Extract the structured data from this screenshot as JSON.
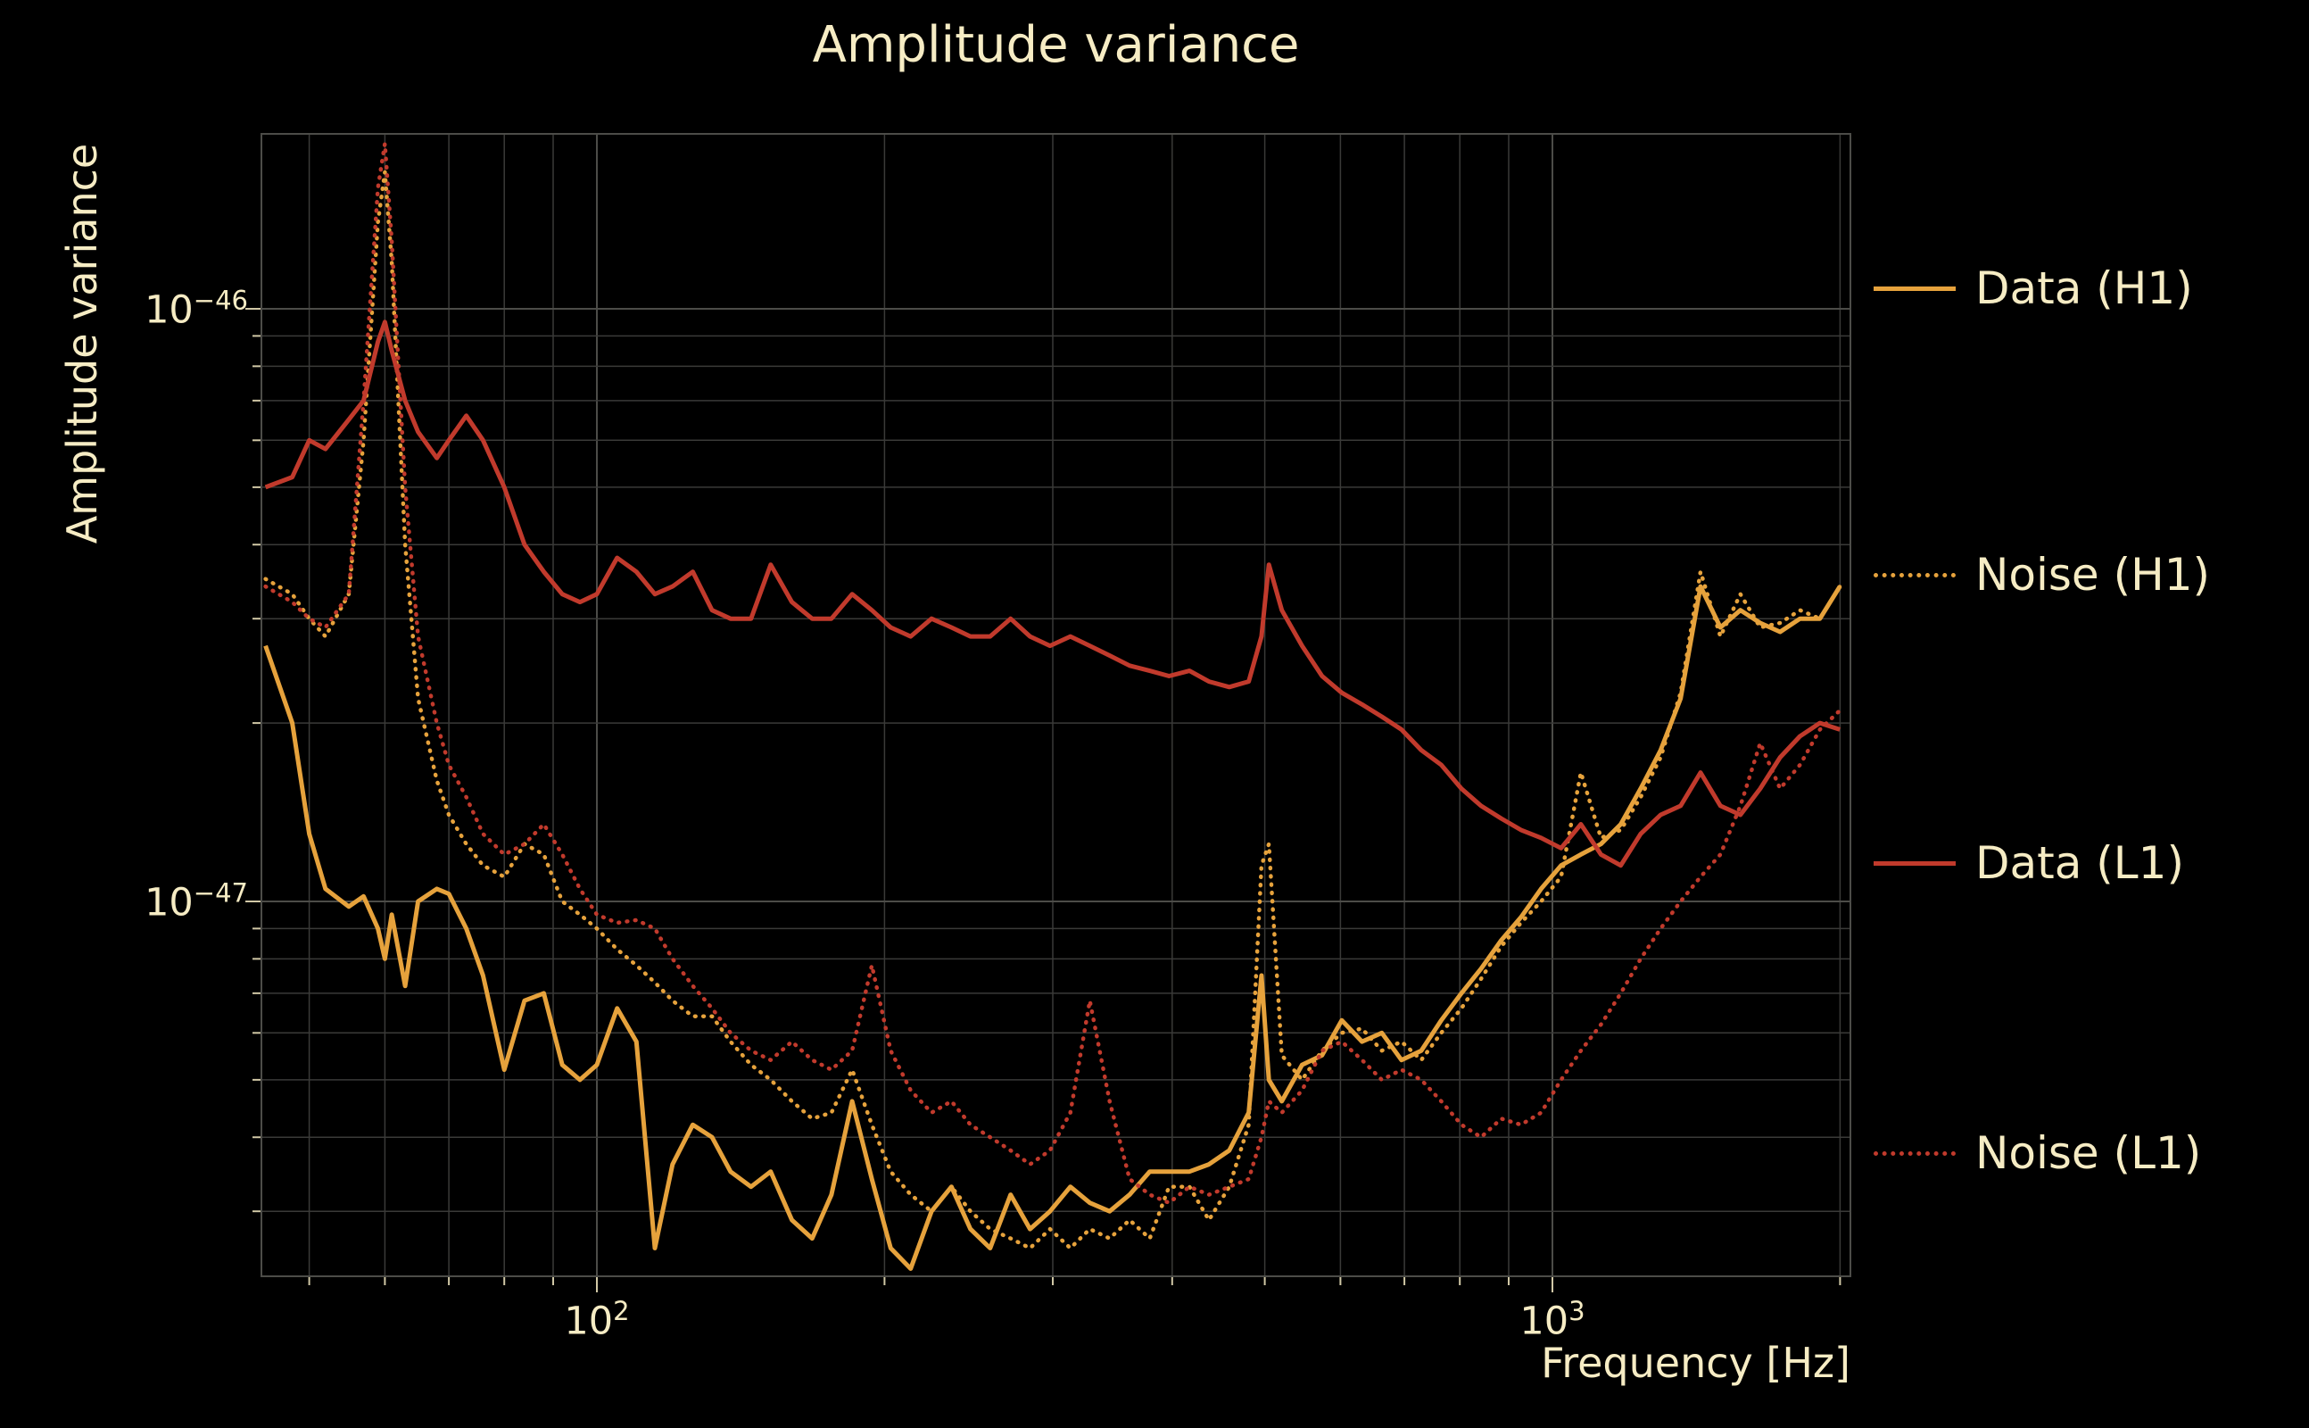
{
  "colors": {
    "background": "#000000",
    "text": "#F6ECC4",
    "grid_minor": "#3a3a38",
    "grid_major": "#4c4c48",
    "frame": "#4c4c48",
    "h1": "#E6A23C",
    "l1": "#C13A2C"
  },
  "chart_data": {
    "type": "line",
    "title": "Amplitude variance",
    "xlabel": "Frequency [Hz]",
    "ylabel": "Amplitude variance",
    "x_scale": "log",
    "y_scale": "log",
    "xlim_hz": [
      45,
      2050
    ],
    "ylim": [
      2.3e-48,
      2.05e-46
    ],
    "grid": true,
    "legend_position": "right-outside",
    "x_ticks": [
      {
        "base": "10",
        "exp": "2"
      },
      {
        "base": "10",
        "exp": "3"
      }
    ],
    "y_ticks": [
      {
        "base": "10",
        "exp": "−46"
      },
      {
        "base": "10",
        "exp": "−47"
      }
    ],
    "values_scale": 1e-48,
    "frequencies_hz": [
      45,
      48,
      50,
      52,
      55,
      57,
      59,
      60,
      61,
      63,
      65,
      68,
      70,
      73,
      76,
      80,
      84,
      88,
      92,
      96,
      100,
      105,
      110,
      115,
      120,
      126,
      132,
      138,
      145,
      152,
      160,
      168,
      176,
      185,
      194,
      203,
      213,
      224,
      235,
      246,
      258,
      271,
      284,
      298,
      313,
      328,
      344,
      361,
      379,
      397,
      417,
      437,
      459,
      481,
      496,
      505,
      521,
      547,
      574,
      602,
      632,
      663,
      695,
      729,
      765,
      803,
      842,
      884,
      927,
      973,
      1021,
      1071,
      1124,
      1179,
      1237,
      1298,
      1362,
      1429,
      1499,
      1573,
      1650,
      1731,
      1816,
      1905,
      1999
    ],
    "series": [
      {
        "name": "Data (H1)",
        "color": "#E6A23C",
        "style": "solid",
        "values": [
          27,
          20,
          13,
          10.5,
          9.8,
          10.2,
          9.0,
          8.0,
          9.5,
          7.2,
          10.0,
          10.5,
          10.3,
          9.0,
          7.5,
          5.2,
          6.8,
          7.0,
          5.3,
          5.0,
          5.3,
          6.6,
          5.8,
          2.6,
          3.6,
          4.2,
          4.0,
          3.5,
          3.3,
          3.5,
          2.9,
          2.7,
          3.2,
          4.6,
          3.4,
          2.6,
          2.4,
          3.0,
          3.3,
          2.8,
          2.6,
          3.2,
          2.8,
          3.0,
          3.3,
          3.1,
          3.0,
          3.2,
          3.5,
          3.5,
          3.5,
          3.6,
          3.8,
          4.4,
          7.5,
          5.0,
          4.6,
          5.3,
          5.5,
          6.3,
          5.8,
          6.0,
          5.4,
          5.6,
          6.3,
          7.0,
          7.7,
          8.6,
          9.4,
          10.5,
          11.5,
          12.0,
          12.5,
          13.5,
          15.5,
          18,
          22,
          34,
          29,
          31,
          29.5,
          28.5,
          30,
          30,
          34
        ]
      },
      {
        "name": "Noise (H1)",
        "color": "#E6A23C",
        "style": "dotted",
        "values": [
          35,
          33,
          30,
          28,
          33,
          60,
          140,
          170,
          120,
          40,
          22,
          16,
          14,
          12.5,
          11.5,
          11,
          12.5,
          12,
          10,
          9.5,
          9.0,
          8.3,
          7.8,
          7.3,
          6.8,
          6.4,
          6.4,
          5.8,
          5.3,
          5.0,
          4.6,
          4.3,
          4.4,
          5.2,
          4.2,
          3.5,
          3.2,
          3.0,
          3.3,
          3.0,
          2.8,
          2.7,
          2.6,
          2.8,
          2.6,
          2.8,
          2.7,
          2.9,
          2.7,
          3.3,
          3.3,
          2.9,
          3.3,
          4.2,
          11.5,
          12.5,
          5.5,
          5.0,
          5.6,
          6.0,
          6.1,
          5.6,
          5.8,
          5.4,
          6.0,
          6.6,
          7.4,
          8.4,
          9.2,
          10.0,
          11.0,
          16.5,
          12.8,
          13.2,
          15.0,
          17.5,
          22.5,
          36,
          28,
          33,
          29,
          29.5,
          31,
          30,
          34
        ]
      },
      {
        "name": "Data (L1)",
        "color": "#C13A2C",
        "style": "solid",
        "values": [
          50,
          52,
          60,
          58,
          65,
          70,
          88,
          95,
          85,
          70,
          62,
          56,
          60,
          66,
          60,
          50,
          40,
          36,
          33,
          32,
          33,
          38,
          36,
          33,
          34,
          36,
          31,
          30,
          30,
          37,
          32,
          30,
          30,
          33,
          31,
          29,
          28,
          30,
          29,
          28,
          28,
          30,
          28,
          27,
          28,
          27,
          26,
          25,
          24.5,
          24,
          24.5,
          23.5,
          23,
          23.5,
          28,
          37,
          31,
          27,
          24,
          22.5,
          21.5,
          20.5,
          19.5,
          18,
          17,
          15.5,
          14.5,
          13.8,
          13.2,
          12.8,
          12.3,
          13.5,
          12.0,
          11.5,
          13.0,
          14.0,
          14.5,
          16.5,
          14.5,
          14.0,
          15.5,
          17.5,
          19.0,
          20.0,
          19.5
        ]
      },
      {
        "name": "Noise (L1)",
        "color": "#C13A2C",
        "style": "dotted",
        "values": [
          34,
          32,
          30,
          29,
          33,
          70,
          160,
          190,
          130,
          50,
          28,
          20,
          17,
          15,
          13,
          12,
          12.5,
          13.5,
          12,
          10.5,
          9.5,
          9.2,
          9.3,
          9.0,
          8.0,
          7.2,
          6.6,
          6.0,
          5.6,
          5.4,
          5.8,
          5.4,
          5.2,
          5.6,
          7.8,
          5.6,
          4.8,
          4.4,
          4.6,
          4.2,
          4.0,
          3.8,
          3.6,
          3.8,
          4.4,
          6.8,
          4.6,
          3.4,
          3.2,
          3.1,
          3.3,
          3.2,
          3.3,
          3.4,
          4.0,
          4.6,
          4.4,
          4.8,
          5.6,
          5.8,
          5.4,
          5.0,
          5.2,
          5.0,
          4.6,
          4.2,
          4.0,
          4.3,
          4.2,
          4.4,
          5.0,
          5.6,
          6.2,
          7.0,
          8.0,
          9.0,
          10.0,
          11.0,
          12.0,
          14.5,
          18.5,
          15.5,
          17.0,
          19.5,
          21.0
        ]
      }
    ]
  }
}
